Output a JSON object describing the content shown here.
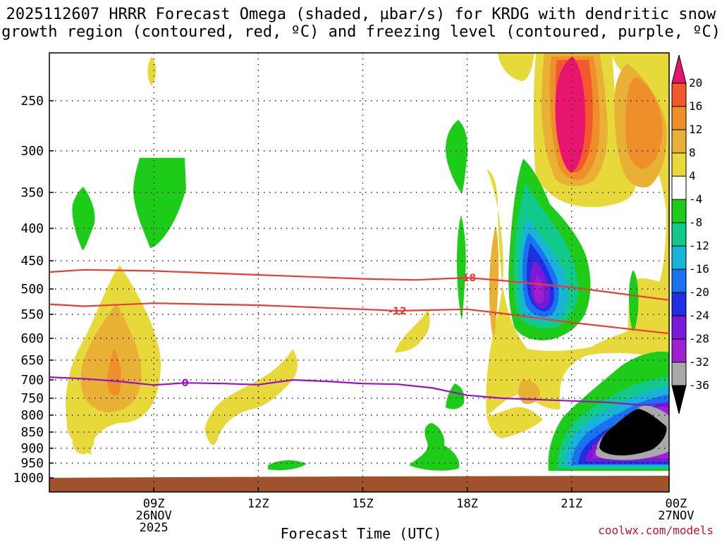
{
  "title": {
    "line1": "2025112607 HRRR Forecast Omega (shaded, µbar/s) for KRDG with dendritic snow",
    "line2": "growth region (contoured, red, ºC) and freezing level (contoured, purple, ºC)"
  },
  "credit": "coolwx.com/models",
  "chart_data": {
    "type": "time-height cross-section",
    "x_axis": {
      "title": "Forecast Time (UTC)",
      "range_hours_utc": [
        6.0,
        23.8
      ],
      "ticks": [
        {
          "hour": 9,
          "label": "09Z",
          "sub1": "26NOV",
          "sub2": "2025"
        },
        {
          "hour": 12,
          "label": "12Z",
          "sub1": "",
          "sub2": ""
        },
        {
          "hour": 15,
          "label": "15Z",
          "sub1": "",
          "sub2": ""
        },
        {
          "hour": 18,
          "label": "18Z",
          "sub1": "",
          "sub2": ""
        },
        {
          "hour": 21,
          "label": "21Z",
          "sub1": "",
          "sub2": ""
        },
        {
          "hour": 24,
          "label": "00Z",
          "sub1": "27NOV",
          "sub2": ""
        }
      ]
    },
    "y_axis": {
      "units": "hPa",
      "ticks": [
        250,
        300,
        350,
        400,
        450,
        500,
        550,
        600,
        650,
        700,
        750,
        800,
        850,
        900,
        950,
        1000
      ]
    },
    "colorbar": {
      "labels": [
        "20",
        "16",
        "12",
        "8",
        "4",
        "-4",
        "-8",
        "-12",
        "-16",
        "-20",
        "-24",
        "-28",
        "-32",
        "-36"
      ],
      "colors": [
        "#e8156f",
        "#f25a2c",
        "#ee8f2a",
        "#e9b036",
        "#e8d93a",
        "#ffffff",
        "#1ccc18",
        "#10c98a",
        "#18b3d8",
        "#1a72f0",
        "#1f30e0",
        "#7a19d8",
        "#a01fd0",
        "#a9a9a9",
        "#000000"
      ]
    },
    "contours": [
      {
        "name": "dendritic snow growth region",
        "color": "#ee3a35",
        "label": "-18",
        "label_hour": 18.0,
        "points": [
          [
            6.0,
            470
          ],
          [
            7.0,
            466
          ],
          [
            9.0,
            468
          ],
          [
            12.0,
            475
          ],
          [
            15.0,
            482
          ],
          [
            16.5,
            484
          ],
          [
            18.0,
            480
          ],
          [
            19.0,
            485
          ],
          [
            21.0,
            497
          ],
          [
            23.8,
            522
          ]
        ]
      },
      {
        "name": "dendritic snow growth region",
        "color": "#ee3a35",
        "label": "-12",
        "label_hour": 16.0,
        "points": [
          [
            6.0,
            530
          ],
          [
            7.0,
            534
          ],
          [
            9.0,
            528
          ],
          [
            12.0,
            532
          ],
          [
            15.0,
            540
          ],
          [
            16.0,
            543
          ],
          [
            18.0,
            540
          ],
          [
            19.0,
            548
          ],
          [
            21.0,
            567
          ],
          [
            23.8,
            590
          ]
        ]
      },
      {
        "name": "freezing level",
        "color": "#9c0ec9",
        "label": "0",
        "label_hour": 9.9,
        "points": [
          [
            6.0,
            693
          ],
          [
            7.0,
            697
          ],
          [
            8.0,
            704
          ],
          [
            9.0,
            714
          ],
          [
            9.9,
            708
          ],
          [
            11.0,
            710
          ],
          [
            12.0,
            713
          ],
          [
            13.0,
            700
          ],
          [
            14.0,
            704
          ],
          [
            15.0,
            710
          ],
          [
            16.0,
            712
          ],
          [
            17.0,
            722
          ],
          [
            18.0,
            742
          ],
          [
            19.0,
            750
          ],
          [
            20.0,
            754
          ],
          [
            21.0,
            758
          ],
          [
            22.0,
            762
          ],
          [
            23.0,
            770
          ],
          [
            23.8,
            765
          ]
        ]
      }
    ],
    "omega_regions": [
      {
        "value_band": "4-8",
        "desc": "weak ascent yellow",
        "hours": [
          6.3,
          9.8
        ],
        "p": [
          470,
          990
        ]
      },
      {
        "value_band": "8-12",
        "desc": "orange core",
        "hours": [
          8.0,
          9.3
        ],
        "p": [
          500,
          780
        ]
      },
      {
        "value_band": "-4--8",
        "desc": "green subsidence",
        "hours": [
          10.4,
          11.5
        ],
        "p": [
          305,
          460
        ]
      },
      {
        "value_band": "-4--8",
        "desc": "green subsidence",
        "hours": [
          7.6,
          8.0
        ],
        "p": [
          345,
          430
        ]
      },
      {
        "value_band": "4-8",
        "desc": "yellow low",
        "hours": [
          11.6,
          14.8
        ],
        "p": [
          650,
          960
        ]
      },
      {
        "value_band": "-8--36",
        "desc": "strong descent core",
        "hours": [
          21.8,
          23.8
        ],
        "p": [
          760,
          990
        ]
      },
      {
        "value_band": "8-20",
        "desc": "strong ascent aloft",
        "hours": [
          21.0,
          23.8
        ],
        "p": [
          160,
          400
        ]
      },
      {
        "value_band": "-8--28",
        "desc": "mid-level descent",
        "hours": [
          20.2,
          22.0
        ],
        "p": [
          330,
          620
        ]
      }
    ]
  }
}
